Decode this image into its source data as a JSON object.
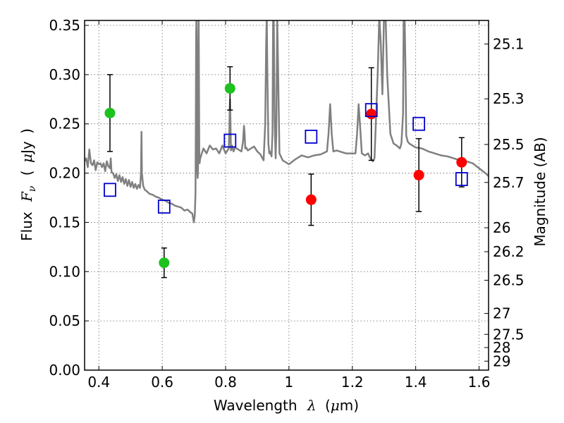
{
  "chart_data": {
    "type": "scatter",
    "xlabel": {
      "prefix": "Wavelength",
      "symbol": "λ",
      "open_paren": "(",
      "unit_mu": "μ",
      "unit": "m",
      "close_paren": ")"
    },
    "ylabel": {
      "prefix": "Flux",
      "symbol": "F",
      "subscript": "ν",
      "open_paren": "(",
      "unit_mu": "μ",
      "unit": "Jy",
      "close_paren": ")"
    },
    "y2label": "Magnitude (AB)",
    "xlim": [
      0.355,
      1.63
    ],
    "ylim": [
      0.0,
      0.355
    ],
    "grid": true,
    "x_ticks": [
      0.4,
      0.6,
      0.8,
      1.0,
      1.2,
      1.4,
      1.6
    ],
    "x_tick_labels": [
      "0.4",
      "0.6",
      "0.8",
      "1",
      "1.2",
      "1.4",
      "1.6"
    ],
    "y_ticks": [
      0.0,
      0.05,
      0.1,
      0.15,
      0.2,
      0.25,
      0.3,
      0.35
    ],
    "y_tick_labels": [
      "0.00",
      "0.05",
      "0.10",
      "0.15",
      "0.20",
      "0.25",
      "0.30",
      "0.35"
    ],
    "y2_ticks": [
      {
        "mag": 25.1,
        "label": "25.1"
      },
      {
        "mag": 25.3,
        "label": "25.3"
      },
      {
        "mag": 25.5,
        "label": "25.5"
      },
      {
        "mag": 25.7,
        "label": "25.7"
      },
      {
        "mag": 26.0,
        "label": "26"
      },
      {
        "mag": 26.2,
        "label": "26.2"
      },
      {
        "mag": 26.5,
        "label": "26.5"
      },
      {
        "mag": 27.0,
        "label": "27"
      },
      {
        "mag": 27.5,
        "label": "27.5"
      },
      {
        "mag": 28.0,
        "label": "28"
      },
      {
        "mag": 29.0,
        "label": "29"
      }
    ],
    "colors": {
      "spectrum": "#808080",
      "green": "#1ec21e",
      "red": "#ff0000",
      "model": "#0000cc",
      "errorbar": "#000000",
      "grid": "#666666"
    },
    "series": [
      {
        "marker": "circle",
        "color": "#1ec21e",
        "points": [
          {
            "x": 0.435,
            "y": 0.261,
            "err": 0.039
          },
          {
            "x": 0.606,
            "y": 0.109,
            "err": 0.015
          },
          {
            "x": 0.814,
            "y": 0.286,
            "err": 0.022
          }
        ]
      },
      {
        "marker": "circle",
        "color": "#ff0000",
        "points": [
          {
            "x": 1.07,
            "y": 0.173,
            "err": 0.026
          },
          {
            "x": 1.26,
            "y": 0.26,
            "err": 0.047
          },
          {
            "x": 1.41,
            "y": 0.198,
            "err": 0.037
          },
          {
            "x": 1.545,
            "y": 0.211,
            "err": 0.025
          }
        ]
      },
      {
        "marker": "square",
        "color": "#0000cc",
        "points": [
          {
            "x": 0.435,
            "y": 0.183
          },
          {
            "x": 0.606,
            "y": 0.166
          },
          {
            "x": 0.814,
            "y": 0.233
          },
          {
            "x": 1.07,
            "y": 0.237
          },
          {
            "x": 1.26,
            "y": 0.264
          },
          {
            "x": 1.41,
            "y": 0.25
          },
          {
            "x": 1.545,
            "y": 0.194
          }
        ]
      }
    ],
    "spectrum": {
      "x": [
        0.355,
        0.36,
        0.365,
        0.37,
        0.375,
        0.38,
        0.385,
        0.39,
        0.395,
        0.4,
        0.405,
        0.41,
        0.415,
        0.42,
        0.425,
        0.43,
        0.435,
        0.4375,
        0.44,
        0.445,
        0.45,
        0.455,
        0.46,
        0.465,
        0.47,
        0.475,
        0.48,
        0.485,
        0.49,
        0.495,
        0.5,
        0.505,
        0.51,
        0.515,
        0.52,
        0.525,
        0.53,
        0.533,
        0.5345,
        0.536,
        0.54,
        0.545,
        0.55,
        0.56,
        0.57,
        0.58,
        0.59,
        0.6,
        0.61,
        0.62,
        0.63,
        0.64,
        0.65,
        0.66,
        0.67,
        0.68,
        0.69,
        0.695,
        0.7,
        0.703,
        0.705,
        0.706,
        0.707,
        0.708,
        0.709,
        0.71,
        0.711,
        0.712,
        0.713,
        0.714,
        0.715,
        0.716,
        0.717,
        0.718,
        0.72,
        0.73,
        0.74,
        0.75,
        0.76,
        0.77,
        0.78,
        0.79,
        0.8,
        0.81,
        0.812,
        0.813,
        0.814,
        0.815,
        0.816,
        0.817,
        0.82,
        0.825,
        0.83,
        0.84,
        0.85,
        0.855,
        0.858,
        0.86,
        0.862,
        0.865,
        0.87,
        0.88,
        0.89,
        0.9,
        0.91,
        0.92,
        0.925,
        0.928,
        0.93,
        0.932,
        0.935,
        0.938,
        0.94,
        0.945,
        0.948,
        0.95,
        0.952,
        0.955,
        0.958,
        0.96,
        0.963,
        0.966,
        0.97,
        0.98,
        1.0,
        1.02,
        1.04,
        1.06,
        1.08,
        1.1,
        1.12,
        1.125,
        1.13,
        1.135,
        1.14,
        1.15,
        1.16,
        1.18,
        1.2,
        1.21,
        1.215,
        1.22,
        1.225,
        1.23,
        1.24,
        1.25,
        1.255,
        1.26,
        1.265,
        1.27,
        1.28,
        1.285,
        1.29,
        1.295,
        1.3,
        1.305,
        1.31,
        1.32,
        1.33,
        1.34,
        1.35,
        1.355,
        1.36,
        1.362,
        1.365,
        1.368,
        1.37,
        1.375,
        1.38,
        1.39,
        1.4,
        1.42,
        1.44,
        1.46,
        1.48,
        1.5,
        1.52,
        1.54,
        1.56,
        1.58,
        1.6,
        1.62,
        1.63
      ],
      "y": [
        0.212,
        0.215,
        0.206,
        0.224,
        0.21,
        0.208,
        0.213,
        0.203,
        0.211,
        0.209,
        0.21,
        0.206,
        0.21,
        0.202,
        0.212,
        0.207,
        0.205,
        0.215,
        0.201,
        0.2,
        0.195,
        0.199,
        0.192,
        0.198,
        0.191,
        0.196,
        0.189,
        0.194,
        0.187,
        0.193,
        0.186,
        0.191,
        0.185,
        0.189,
        0.184,
        0.188,
        0.185,
        0.2,
        0.242,
        0.2,
        0.187,
        0.183,
        0.182,
        0.179,
        0.178,
        0.176,
        0.175,
        0.173,
        0.172,
        0.17,
        0.169,
        0.167,
        0.166,
        0.165,
        0.162,
        0.163,
        0.16,
        0.159,
        0.15,
        0.158,
        0.18,
        0.24,
        0.34,
        0.36,
        0.3,
        0.22,
        0.2,
        0.195,
        0.205,
        0.33,
        0.36,
        0.3,
        0.22,
        0.21,
        0.215,
        0.225,
        0.22,
        0.228,
        0.224,
        0.225,
        0.22,
        0.228,
        0.22,
        0.225,
        0.245,
        0.265,
        0.275,
        0.26,
        0.24,
        0.223,
        0.228,
        0.222,
        0.226,
        0.224,
        0.222,
        0.232,
        0.248,
        0.24,
        0.225,
        0.226,
        0.223,
        0.225,
        0.227,
        0.222,
        0.219,
        0.213,
        0.25,
        0.33,
        0.36,
        0.3,
        0.23,
        0.22,
        0.222,
        0.217,
        0.24,
        0.36,
        0.36,
        0.25,
        0.215,
        0.24,
        0.36,
        0.3,
        0.22,
        0.213,
        0.209,
        0.214,
        0.218,
        0.216,
        0.218,
        0.219,
        0.222,
        0.24,
        0.27,
        0.24,
        0.222,
        0.223,
        0.222,
        0.22,
        0.22,
        0.22,
        0.24,
        0.27,
        0.245,
        0.22,
        0.218,
        0.22,
        0.216,
        0.214,
        0.212,
        0.215,
        0.3,
        0.36,
        0.33,
        0.28,
        0.36,
        0.36,
        0.3,
        0.24,
        0.23,
        0.228,
        0.225,
        0.23,
        0.26,
        0.36,
        0.36,
        0.3,
        0.238,
        0.232,
        0.23,
        0.228,
        0.226,
        0.225,
        0.222,
        0.22,
        0.218,
        0.217,
        0.215,
        0.213,
        0.212,
        0.21,
        0.205,
        0.2,
        0.197
      ]
    }
  }
}
